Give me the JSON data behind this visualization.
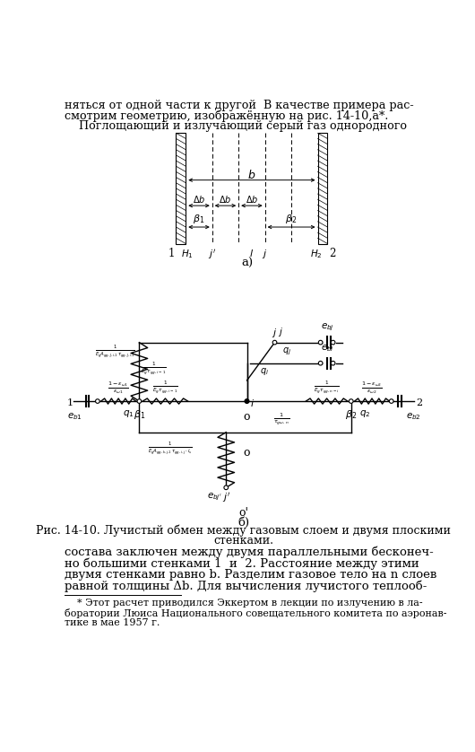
{
  "bg_color": "#ffffff",
  "text_color": "#000000",
  "top_text_lines": [
    "няться от одной части к другой  В качестве примера рас-",
    "смотрим геометрию, изображённую на рис. 14-10,а*.",
    "    Поглощающий и излучающий серый газ однородного"
  ],
  "caption_line1": "Рис. 14-10. Лучистый обмен между газовым слоем и двумя плоскими",
  "caption_line2": "стенками.",
  "body_lines": [
    "состава заключен между двумя параллельными бесконеч-",
    "но большими стенками 1  и  2. Расстояние между этими",
    "двумя стенками равно b. Разделим газовое тело на n слоев",
    "равной толщины Δb. Для вычисления лучистого теплооб-"
  ],
  "footnote_lines": [
    "    * Этот расчет приводился Эккертом в лекции по излучению в ла-",
    "боратории Люиса Национального совещательного комитета по аэронав-",
    "тике в мае 1957 г."
  ]
}
